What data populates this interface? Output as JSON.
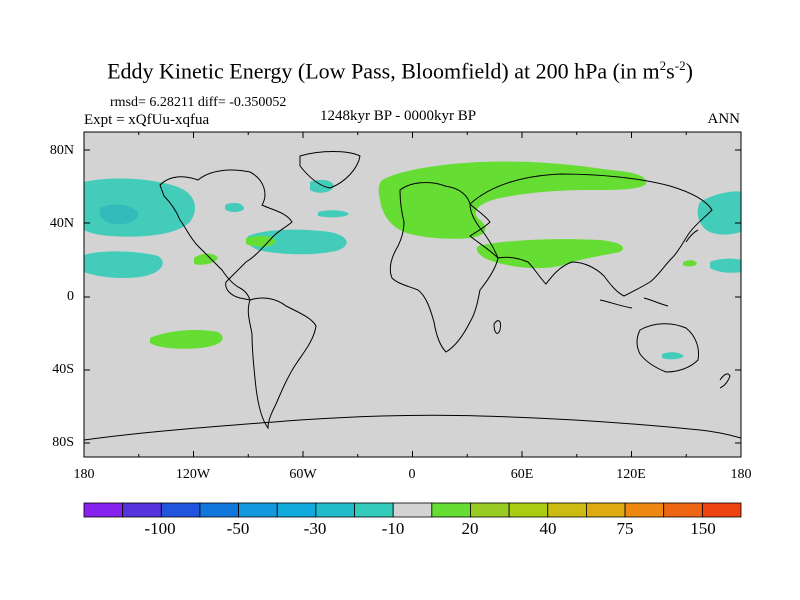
{
  "title": {
    "text": "Eddy Kinetic Energy (Low Pass, Bloomfield) at 200 hPa (in m",
    "sup1": "2",
    "mid": "s",
    "sup2": "-2",
    "end": ")"
  },
  "stats": "rmsd= 6.28211 diff= -0.350052",
  "expt": "Expt = xQfUu-xqfua",
  "period": "1248kyr BP - 0000kyr BP",
  "season": "ANN",
  "map": {
    "lat_labels": [
      "80N",
      "40N",
      "0",
      "40S",
      "80S"
    ],
    "lon_labels": [
      "180",
      "120W",
      "60W",
      "0",
      "60E",
      "120E",
      "180"
    ],
    "ocean_color": "#d3d3d3",
    "positive_color": "#66dd33",
    "negative_color": "#44ccbb",
    "negative_dark_color": "#33bbbb"
  },
  "colorbar": {
    "colors": [
      "#8822ee",
      "#5533dd",
      "#2255dd",
      "#1177dd",
      "#1199dd",
      "#11aadd",
      "#22bbcc",
      "#33ccbb",
      "#d3d3d3",
      "#66dd33",
      "#99cc22",
      "#aacc11",
      "#ccbb11",
      "#ddaa11",
      "#ee8811",
      "#ee6611",
      "#ee4411"
    ],
    "labels": [
      "-100",
      "-50",
      "-30",
      "-10",
      "20",
      "40",
      "75",
      "150"
    ]
  }
}
